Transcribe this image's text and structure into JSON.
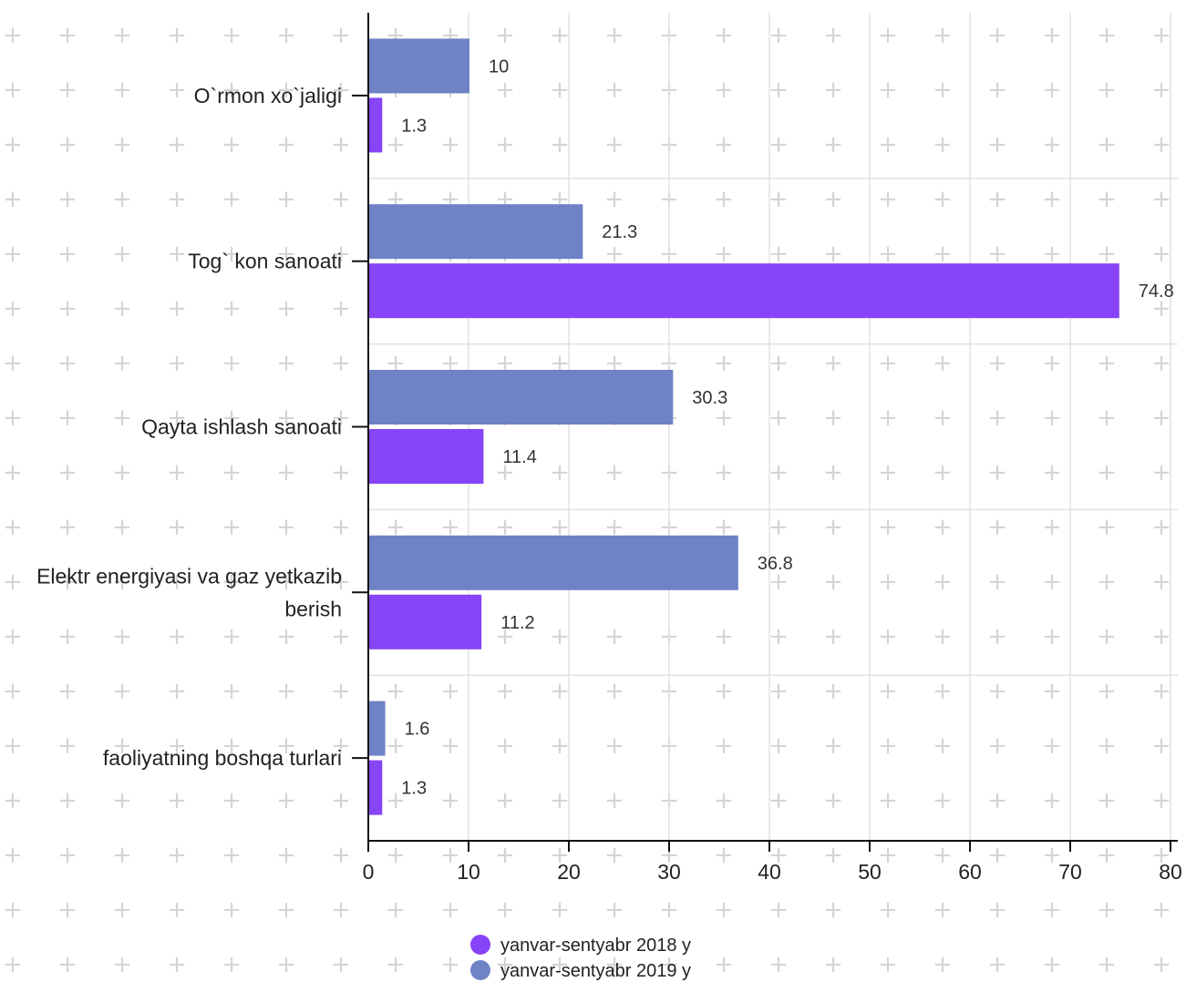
{
  "chart_data": {
    "type": "bar",
    "orientation": "horizontal",
    "title": "",
    "xlabel": "",
    "ylabel": "",
    "categories": [
      "O`rmon xo`jaligi",
      "Tog` kon sanoati",
      "Qayta ishlash sanoati",
      "Elektr energiyasi va gaz yetkazib berish",
      "faoliyatning boshqa turlari"
    ],
    "category_lines": [
      [
        "O`rmon xo`jaligi"
      ],
      [
        "Tog` kon sanoati"
      ],
      [
        "Qayta ishlash sanoati"
      ],
      [
        "Elektr energiyasi va gaz yetkazib",
        "berish"
      ],
      [
        "faoliyatning boshqa turlari"
      ]
    ],
    "series": [
      {
        "name": "yanvar-sentyabr 2019 y",
        "color": "#6e82c5",
        "values": [
          10,
          21.3,
          30.3,
          36.8,
          1.6
        ],
        "labels": [
          "10",
          "21.3",
          "30.3",
          "36.8",
          "1.6"
        ]
      },
      {
        "name": "yanvar-sentyabr 2018 y",
        "color": "#8844f7",
        "values": [
          1.3,
          74.8,
          11.4,
          11.2,
          1.3
        ],
        "labels": [
          "1.3",
          "74.8",
          "11.4",
          "11.2",
          "1.3"
        ]
      }
    ],
    "xlim": [
      0,
      80
    ],
    "xticks": [
      0,
      10,
      20,
      30,
      40,
      50,
      60,
      70,
      80
    ],
    "xtick_labels": [
      "0",
      "10",
      "20",
      "30",
      "40",
      "50",
      "60",
      "70",
      "80"
    ],
    "grid": true,
    "legend": {
      "position": "bottom-center",
      "entries": [
        {
          "label": "yanvar-sentyabr 2018 y",
          "color": "#8844f7"
        },
        {
          "label": "yanvar-sentyabr 2019 y",
          "color": "#6e82c5"
        }
      ]
    }
  }
}
